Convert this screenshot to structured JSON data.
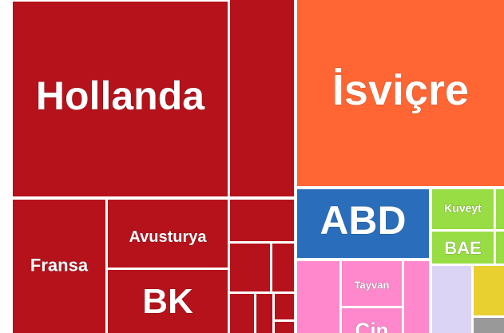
{
  "chart_data": {
    "type": "treemap",
    "categories": [
      "Hollanda",
      "İsviçre",
      "ABD",
      "Fransa",
      "Avusturya",
      "BK",
      "Kuveyt",
      "BAE",
      "Tayvan",
      "Çin"
    ],
    "values": [
      25.6,
      23.3,
      5.6,
      7.6,
      5.0,
      4.6,
      1.5,
      1.2,
      1.6,
      0.9
    ],
    "colors": [
      "#b5121b",
      "#ff6633",
      "#2a6ebb",
      "#b5121b",
      "#b5121b",
      "#b5121b",
      "#99dd44",
      "#99dd44",
      "#ff88cc",
      "#ff88cc"
    ]
  }
}
